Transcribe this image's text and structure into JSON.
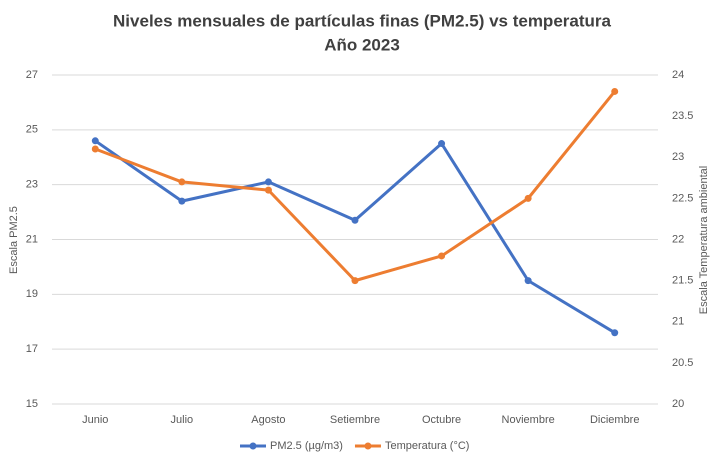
{
  "chart_data": {
    "type": "line",
    "title": "Niveles mensuales de partículas finas (PM2.5) vs temperatura",
    "subtitle": "Año 2023",
    "categories": [
      "Junio",
      "Julio",
      "Agosto",
      "Setiembre",
      "Octubre",
      "Noviembre",
      "Diciembre"
    ],
    "series": [
      {
        "name": "PM2.5 (µg/m3)",
        "color": "#4472c4",
        "values": [
          24.6,
          22.4,
          23.1,
          21.7,
          24.5,
          19.5,
          17.6
        ]
      },
      {
        "name": "Temperatura (°C)",
        "color": "#ed7d31",
        "axis": "y2",
        "values": [
          23.1,
          22.7,
          22.6,
          21.5,
          21.8,
          22.5,
          23.8
        ]
      }
    ],
    "ylabel": "Escala PM2.5",
    "y2label": "Escala Temperatura ambiental",
    "ylim": [
      15,
      27
    ],
    "yticks": [
      15,
      17,
      19,
      21,
      23,
      25,
      27
    ],
    "y2lim": [
      20,
      24
    ],
    "y2ticks": [
      20,
      20.5,
      21,
      21.5,
      22,
      22.5,
      23,
      23.5,
      24
    ],
    "grid": true,
    "legend": "bottom"
  }
}
